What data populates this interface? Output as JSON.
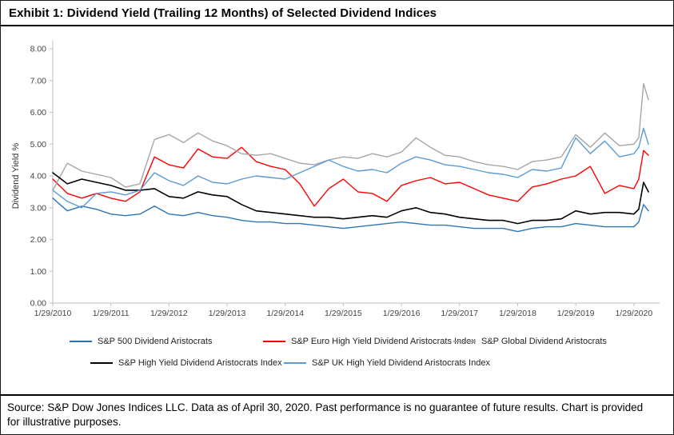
{
  "title": "Exhibit 1: Dividend Yield (Trailing 12 Months) of Selected Dividend Indices",
  "source_note": "Source: S&P Dow Jones Indices LLC. Data as of April 30, 2020. Past performance is no guarantee of future results. Chart is provided for illustrative purposes.",
  "chart_data": {
    "type": "line",
    "title": "Exhibit 1: Dividend Yield (Trailing 12 Months) of Selected Dividend Indices",
    "xlabel": "",
    "ylabel": "Dividend Yield %",
    "ylim": [
      0,
      8
    ],
    "ytick_step": 1,
    "ytick_labels": [
      "0.00",
      "1.00",
      "2.00",
      "3.00",
      "4.00",
      "5.00",
      "6.00",
      "7.00",
      "8.00"
    ],
    "xtick_labels": [
      "1/29/2010",
      "1/29/2011",
      "1/29/2012",
      "1/29/2013",
      "1/29/2014",
      "1/29/2015",
      "1/29/2016",
      "1/29/2017",
      "1/29/2018",
      "1/29/2019",
      "1/29/2020"
    ],
    "grid": false,
    "legend_position": "bottom",
    "x_total_months": 123,
    "x_months": [
      0,
      3,
      6,
      9,
      12,
      15,
      18,
      21,
      24,
      27,
      30,
      33,
      36,
      39,
      42,
      45,
      48,
      51,
      54,
      57,
      60,
      63,
      66,
      69,
      72,
      75,
      78,
      81,
      84,
      87,
      90,
      93,
      96,
      99,
      102,
      105,
      108,
      111,
      114,
      117,
      120,
      121,
      122,
      123
    ],
    "series": [
      {
        "name": "S&P 500 Dividend Aristocrats",
        "color": "#2E74B5",
        "values": [
          3.3,
          2.9,
          3.05,
          2.95,
          2.8,
          2.75,
          2.8,
          3.05,
          2.8,
          2.75,
          2.85,
          2.75,
          2.7,
          2.6,
          2.55,
          2.55,
          2.5,
          2.5,
          2.45,
          2.4,
          2.35,
          2.4,
          2.45,
          2.5,
          2.55,
          2.5,
          2.45,
          2.45,
          2.4,
          2.35,
          2.35,
          2.35,
          2.25,
          2.35,
          2.4,
          2.4,
          2.5,
          2.45,
          2.4,
          2.4,
          2.4,
          2.55,
          3.1,
          2.9
        ]
      },
      {
        "name": "S&P Euro High Yield Dividend Aristocrats Index",
        "color": "#FF0000",
        "values": [
          3.9,
          3.45,
          3.3,
          3.45,
          3.3,
          3.2,
          3.5,
          4.6,
          4.35,
          4.25,
          4.85,
          4.6,
          4.55,
          4.9,
          4.45,
          4.3,
          4.2,
          3.75,
          3.05,
          3.6,
          3.9,
          3.5,
          3.45,
          3.2,
          3.7,
          3.85,
          3.95,
          3.75,
          3.8,
          3.6,
          3.4,
          3.3,
          3.2,
          3.65,
          3.75,
          3.9,
          4.0,
          4.3,
          3.45,
          3.7,
          3.6,
          3.9,
          4.8,
          4.65
        ]
      },
      {
        "name": "S&P Global Dividend Aristocrats",
        "color": "#A6A6A6",
        "values": [
          3.55,
          4.4,
          4.15,
          4.05,
          3.95,
          3.65,
          3.75,
          5.15,
          5.3,
          5.05,
          5.35,
          5.1,
          4.95,
          4.7,
          4.65,
          4.7,
          4.55,
          4.4,
          4.35,
          4.5,
          4.6,
          4.55,
          4.7,
          4.6,
          4.75,
          5.2,
          4.9,
          4.65,
          4.6,
          4.45,
          4.35,
          4.3,
          4.2,
          4.45,
          4.5,
          4.6,
          5.3,
          4.9,
          5.35,
          4.95,
          5.0,
          5.2,
          6.9,
          6.4
        ]
      },
      {
        "name": "S&P High Yield Dividend Aristocrats Index",
        "color": "#000000",
        "values": [
          4.1,
          3.75,
          3.9,
          3.8,
          3.7,
          3.55,
          3.55,
          3.6,
          3.35,
          3.3,
          3.5,
          3.4,
          3.35,
          3.1,
          2.9,
          2.85,
          2.8,
          2.75,
          2.7,
          2.7,
          2.65,
          2.7,
          2.75,
          2.7,
          2.9,
          3.0,
          2.85,
          2.8,
          2.7,
          2.65,
          2.6,
          2.6,
          2.5,
          2.6,
          2.6,
          2.65,
          2.9,
          2.8,
          2.85,
          2.85,
          2.8,
          2.95,
          3.8,
          3.5
        ]
      },
      {
        "name": "S&P UK High Yield Dividend Aristocrats Index",
        "color": "#5B9BD5",
        "values": [
          3.55,
          3.2,
          3.0,
          3.45,
          3.5,
          3.4,
          3.55,
          4.1,
          3.85,
          3.7,
          4.0,
          3.8,
          3.75,
          3.9,
          4.0,
          3.95,
          3.9,
          4.1,
          4.3,
          4.5,
          4.3,
          4.15,
          4.2,
          4.1,
          4.4,
          4.6,
          4.5,
          4.35,
          4.3,
          4.2,
          4.1,
          4.05,
          3.95,
          4.2,
          4.15,
          4.25,
          5.2,
          4.7,
          5.1,
          4.6,
          4.7,
          4.9,
          5.5,
          5.0
        ]
      }
    ]
  }
}
